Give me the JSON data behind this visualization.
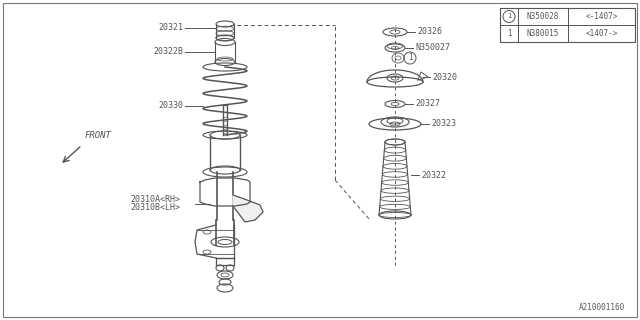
{
  "bg_color": "#ffffff",
  "line_color": "#555555",
  "text_color": "#555555",
  "parts": {
    "20310A": "20310A<RH>",
    "20310B": "20310B<LH>",
    "20321": "20321",
    "20322": "20322",
    "20322B": "20322B",
    "20323": "20323",
    "20326": "20326",
    "20327": "20327",
    "20320": "20320",
    "20330": "20330",
    "N350027": "N350027",
    "N350028": "N350028<-1407>",
    "N380015": "N380015<1407->"
  },
  "footer": "A210001160",
  "front_label": "FRONT",
  "legend_row1_part": "N350028",
  "legend_row1_range": "<-1407>",
  "legend_row2_part": "N380015",
  "legend_row2_range": "<1407->"
}
